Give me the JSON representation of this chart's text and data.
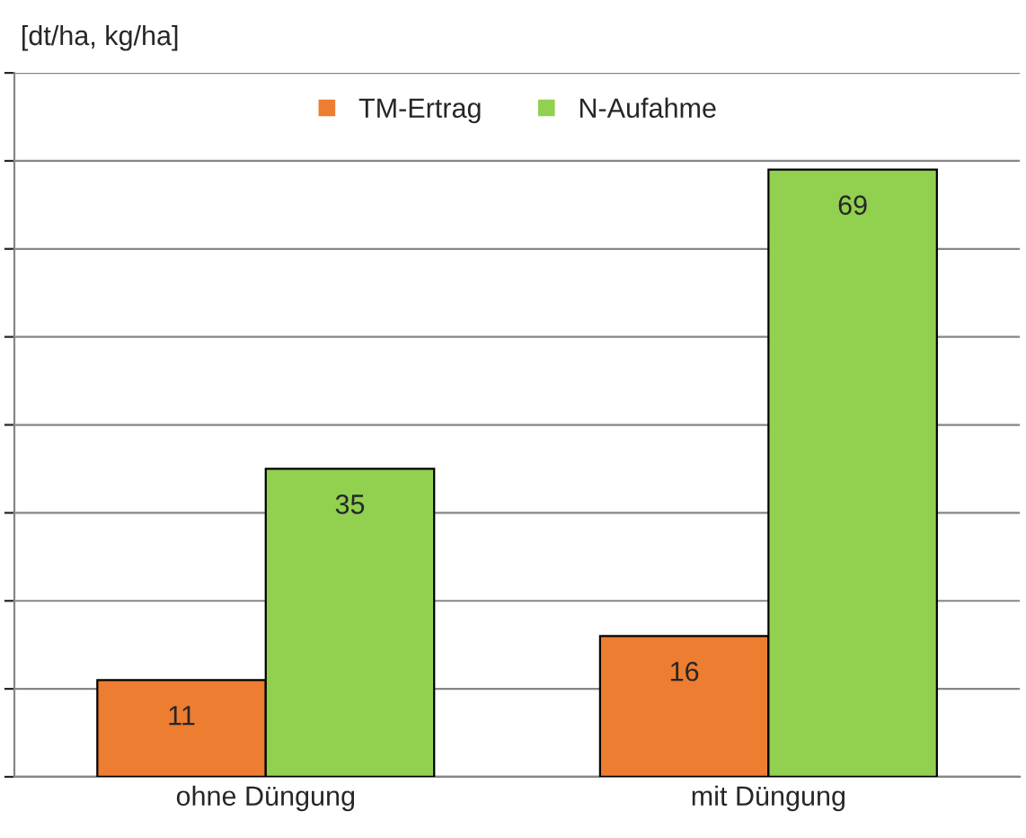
{
  "chart_data": {
    "type": "bar",
    "ylabel": "[dt/ha, kg/ha]",
    "categories": [
      "ohne Düngung",
      "mit Düngung"
    ],
    "series": [
      {
        "name": "TM-Ertrag",
        "color": "#ed7d31",
        "values": [
          11,
          16
        ]
      },
      {
        "name": "N-Aufahme",
        "color": "#92d050",
        "values": [
          35,
          69
        ]
      }
    ],
    "ylim": [
      0,
      80
    ],
    "yticks": [
      {
        "value": 0,
        "label": null
      },
      {
        "value": 10,
        "label": null
      },
      {
        "value": 20,
        "label": null
      },
      {
        "value": 30,
        "label": null
      },
      {
        "value": 40,
        "label": null
      },
      {
        "value": 50,
        "label": null
      },
      {
        "value": 60,
        "label": null
      },
      {
        "value": 70,
        "label": null
      },
      {
        "value": 80,
        "label": null
      }
    ],
    "tick_labels": "x",
    "grid": "y",
    "legend": "top",
    "data_labels": true
  }
}
